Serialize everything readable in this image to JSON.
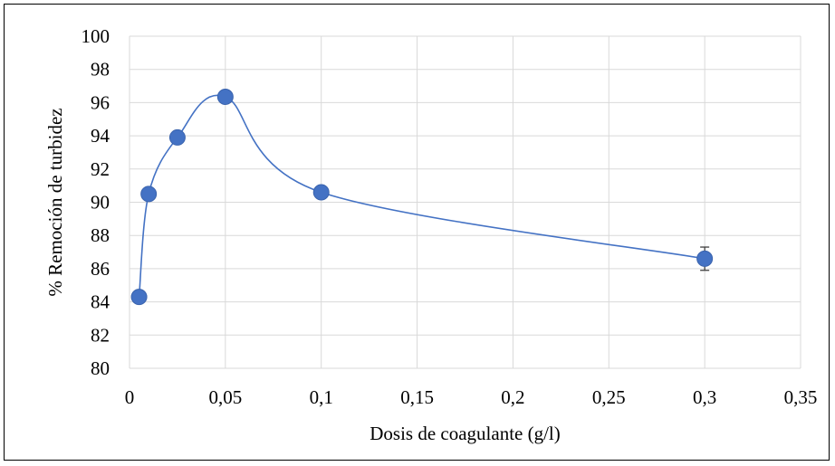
{
  "chart_data": {
    "type": "scatter",
    "title": "",
    "xlabel": "Dosis de coagulante (g/l)",
    "ylabel": "% Remoción de turbidez",
    "xlim": [
      0,
      0.35
    ],
    "ylim": [
      80,
      100
    ],
    "x_ticks": [
      0,
      0.05,
      0.1,
      0.15,
      0.2,
      0.25,
      0.3,
      0.35
    ],
    "x_tick_labels": [
      "0",
      "0,05",
      "0,1",
      "0,15",
      "0,2",
      "0,25",
      "0,3",
      "0,35"
    ],
    "y_ticks": [
      80,
      82,
      84,
      86,
      88,
      90,
      92,
      94,
      96,
      98,
      100
    ],
    "y_tick_labels": [
      "80",
      "82",
      "84",
      "86",
      "88",
      "90",
      "92",
      "94",
      "96",
      "98",
      "100"
    ],
    "grid": true,
    "legend": "none",
    "line": "smooth",
    "series": [
      {
        "x": [
          0.005,
          0.01,
          0.025,
          0.05,
          0.1,
          0.3
        ],
        "y": [
          84.3,
          90.5,
          93.9,
          96.35,
          90.6,
          86.6
        ],
        "error": [
          0.1,
          0.35,
          0.1,
          0.35,
          0.2,
          0.7
        ]
      }
    ],
    "colors": {
      "series": "#4472C4",
      "grid": "#d9d9d9",
      "error_bar": "#404040"
    }
  }
}
